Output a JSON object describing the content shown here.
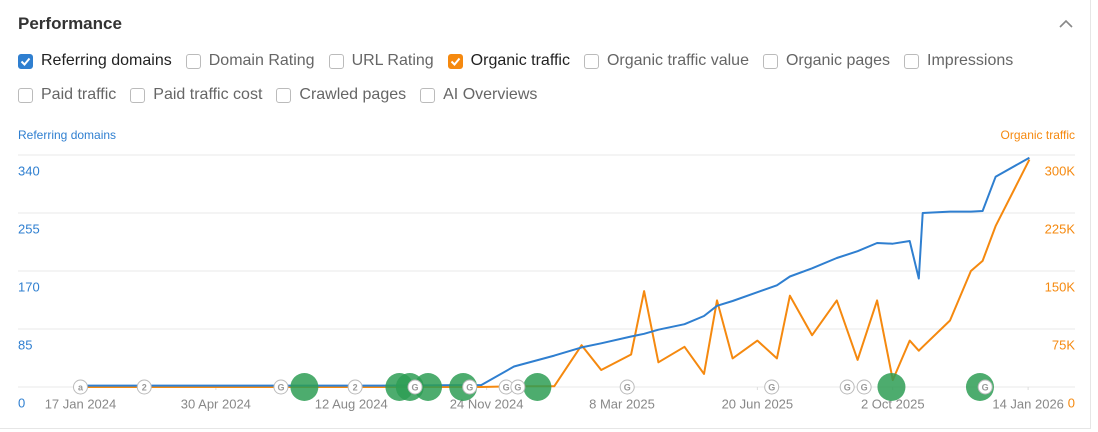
{
  "header": {
    "title": "Performance"
  },
  "checkboxes": [
    [
      {
        "label": "Referring domains",
        "checked": true,
        "color": "#2f7fd0"
      },
      {
        "label": "Domain Rating",
        "checked": false
      },
      {
        "label": "URL Rating",
        "checked": false
      },
      {
        "label": "Organic traffic",
        "checked": true,
        "color": "#f5890f"
      },
      {
        "label": "Organic traffic value",
        "checked": false
      },
      {
        "label": "Organic pages",
        "checked": false
      },
      {
        "label": "Impressions",
        "checked": false
      }
    ],
    [
      {
        "label": "Paid traffic",
        "checked": false
      },
      {
        "label": "Paid traffic cost",
        "checked": false
      },
      {
        "label": "Crawled pages",
        "checked": false
      },
      {
        "label": "AI Overviews",
        "checked": false
      }
    ]
  ],
  "chart_data": {
    "type": "line",
    "ylabel": "Referring domains",
    "y2label": "Organic traffic",
    "x": [
      "2024-01-17",
      "2024-03-01",
      "2024-05-01",
      "2024-07-01",
      "2024-09-01",
      "2024-11-20",
      "2024-12-15",
      "2025-01-15",
      "2025-02-05",
      "2025-02-20",
      "2025-03-15",
      "2025-03-25",
      "2025-04-05",
      "2025-04-25",
      "2025-05-10",
      "2025-05-20",
      "2025-06-01",
      "2025-06-20",
      "2025-07-05",
      "2025-07-15",
      "2025-08-01",
      "2025-08-20",
      "2025-09-05",
      "2025-09-20",
      "2025-10-02",
      "2025-10-15",
      "2025-10-22",
      "2025-10-25",
      "2025-11-15",
      "2025-12-01",
      "2025-12-10",
      "2025-12-20",
      "2026-01-15"
    ],
    "series": [
      {
        "name": "Referring domains",
        "color": "#2f7fd0",
        "values": [
          2,
          2,
          2,
          2,
          2,
          3,
          30,
          46,
          58,
          64,
          74,
          78,
          84,
          92,
          104,
          119,
          126,
          139,
          149,
          162,
          174,
          189,
          199,
          211,
          210,
          214,
          159,
          255,
          257,
          257,
          258,
          308,
          336
        ]
      },
      {
        "name": "Organic traffic",
        "color": "#f5890f",
        "axis": "y2",
        "values": [
          0,
          0,
          0,
          0,
          0,
          0,
          1000,
          1000,
          54000,
          22000,
          42000,
          124000,
          32000,
          52000,
          17000,
          112000,
          37000,
          60000,
          37000,
          118000,
          67000,
          112000,
          35000,
          112000,
          9000,
          60000,
          47000,
          52000,
          86000,
          150000,
          163000,
          208000,
          294000
        ]
      }
    ],
    "xlim": [
      "2023-11-30",
      "2026-02-19"
    ],
    "xticks": [
      {
        "value": "2024-01-17",
        "label": "17 Jan 2024"
      },
      {
        "value": "2024-04-30",
        "label": "30 Apr 2024"
      },
      {
        "value": "2024-08-12",
        "label": "12 Aug 2024"
      },
      {
        "value": "2024-11-24",
        "label": "24 Nov 2024"
      },
      {
        "value": "2025-03-08",
        "label": "8 Mar 2025"
      },
      {
        "value": "2025-06-20",
        "label": "20 Jun 2025"
      },
      {
        "value": "2025-10-02",
        "label": "2 Oct 2025"
      },
      {
        "value": "2026-01-14",
        "label": "14 Jan 2026"
      }
    ],
    "ylim": [
      0,
      340
    ],
    "yticks": [
      0,
      85,
      170,
      255,
      340
    ],
    "y2lim": [
      0,
      300000
    ],
    "y2ticks": [
      0,
      {
        "value": 75000,
        "label": "75K"
      },
      {
        "value": 150000,
        "label": "150K"
      },
      {
        "value": 225000,
        "label": "225K"
      },
      {
        "value": 300000,
        "label": "300K"
      }
    ],
    "grid": true,
    "annotations": [
      {
        "x": "2024-01-17",
        "label": "a"
      },
      {
        "x": "2024-03-06",
        "label": "2"
      },
      {
        "x": "2024-06-19",
        "label": "G"
      },
      {
        "x": "2024-08-15",
        "label": "2"
      },
      {
        "x": "2024-09-30",
        "label": "G"
      },
      {
        "x": "2024-11-11",
        "label": "G"
      },
      {
        "x": "2024-12-09",
        "label": "G"
      },
      {
        "x": "2024-12-18",
        "label": "G"
      },
      {
        "x": "2025-03-12",
        "label": "G"
      },
      {
        "x": "2025-07-01",
        "label": "G"
      },
      {
        "x": "2025-08-28",
        "label": "G"
      },
      {
        "x": "2025-09-10",
        "label": "G"
      },
      {
        "x": "2025-12-12",
        "label": "G"
      }
    ],
    "updates": [
      "2024-07-07",
      "2024-09-18",
      "2024-09-26",
      "2024-10-10",
      "2024-11-06",
      "2025-01-02",
      "2025-10-01",
      "2025-12-08"
    ]
  }
}
